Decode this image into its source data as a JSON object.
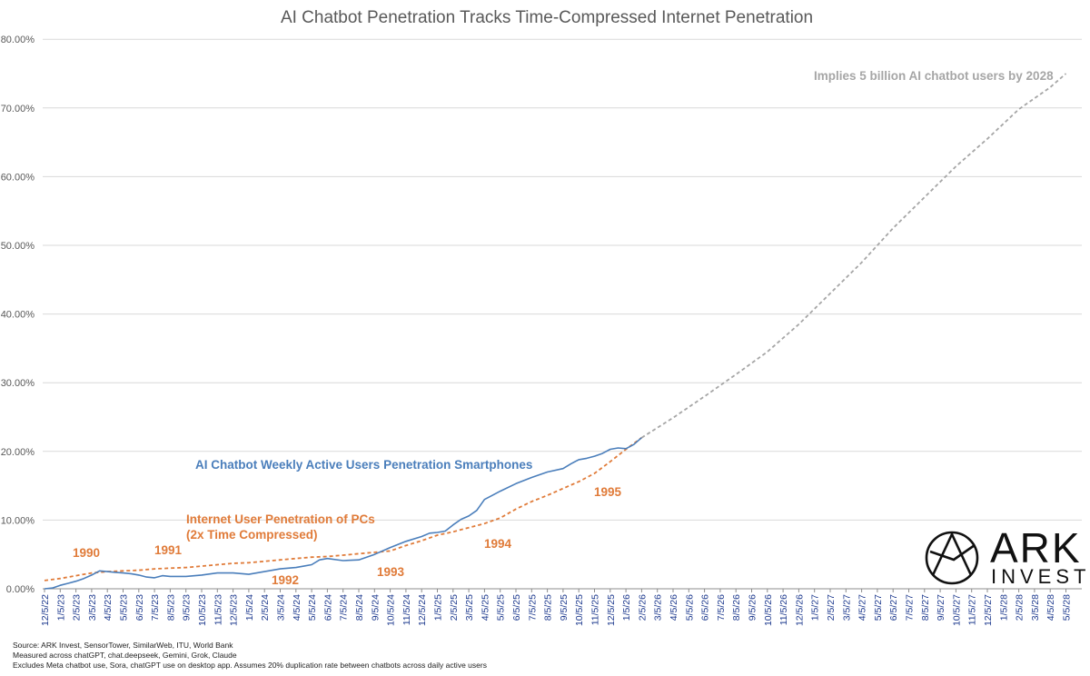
{
  "chart_data": {
    "type": "line",
    "title": "AI Chatbot Penetration Tracks Time-Compressed Internet Penetration",
    "y_ticks": [
      "0.00%",
      "10.00%",
      "20.00%",
      "30.00%",
      "40.00%",
      "50.00%",
      "60.00%",
      "70.00%",
      "80.00%"
    ],
    "ylim": [
      0,
      80
    ],
    "grid": true,
    "x_ticks": [
      "12/5/22",
      "1/5/23",
      "2/5/23",
      "3/5/23",
      "4/5/23",
      "5/5/23",
      "6/5/23",
      "7/5/23",
      "8/5/23",
      "9/5/23",
      "10/5/23",
      "11/5/23",
      "12/5/23",
      "1/5/24",
      "2/5/24",
      "3/5/24",
      "4/5/24",
      "5/5/24",
      "6/5/24",
      "7/5/24",
      "8/5/24",
      "9/5/24",
      "10/5/24",
      "11/5/24",
      "12/5/24",
      "1/5/25",
      "2/5/25",
      "3/5/25",
      "4/5/25",
      "5/5/25",
      "6/5/25",
      "7/5/25",
      "8/5/25",
      "9/5/25",
      "10/5/25",
      "11/5/25",
      "12/5/25",
      "1/5/26",
      "2/5/26",
      "3/5/26",
      "4/5/26",
      "5/5/26",
      "6/5/26",
      "7/5/26",
      "8/5/26",
      "9/5/26",
      "10/5/26",
      "11/5/26",
      "12/5/26",
      "1/5/27",
      "2/5/27",
      "3/5/27",
      "4/5/27",
      "5/5/27",
      "6/5/27",
      "7/5/27",
      "8/5/27",
      "9/5/27",
      "10/5/27",
      "11/5/27",
      "12/5/27",
      "1/5/28",
      "2/5/28",
      "3/5/28",
      "4/5/28",
      "5/5/28"
    ],
    "series": [
      {
        "name": "AI Chatbot Weekly Active Users Penetration Smartphones",
        "color": "#4a7ebb",
        "style": "solid",
        "x": [
          0,
          0.5,
          1,
          1.5,
          2,
          2.5,
          3,
          3.5,
          4,
          4.5,
          5,
          5.5,
          6,
          6.5,
          7,
          7.5,
          8,
          9,
          10,
          11,
          12,
          13,
          14,
          15,
          16,
          16.5,
          17,
          17.5,
          18,
          19,
          20,
          21,
          22,
          23,
          24,
          24.5,
          25,
          25.5,
          26,
          26.5,
          27,
          27.5,
          28,
          28.5,
          29,
          30,
          31,
          32,
          33,
          33.5,
          34,
          34.5,
          35,
          35.5,
          36,
          36.5,
          37,
          37.5,
          38
        ],
        "values": [
          0.0,
          0.1,
          0.5,
          0.8,
          1.1,
          1.5,
          2.0,
          2.6,
          2.5,
          2.4,
          2.3,
          2.2,
          2.0,
          1.7,
          1.6,
          1.9,
          1.8,
          1.8,
          2.0,
          2.3,
          2.3,
          2.1,
          2.5,
          2.9,
          3.1,
          3.3,
          3.5,
          4.2,
          4.4,
          4.1,
          4.2,
          5.0,
          6.0,
          6.9,
          7.6,
          8.1,
          8.2,
          8.4,
          9.3,
          10.1,
          10.6,
          11.4,
          13.0,
          13.6,
          14.2,
          15.3,
          16.2,
          17.0,
          17.5,
          18.2,
          18.8,
          19.0,
          19.3,
          19.7,
          20.3,
          20.5,
          20.4,
          21.0,
          22.0
        ]
      },
      {
        "name": "Internet User Penetration of PCs (2x Time Compressed)",
        "color": "#e07b39",
        "style": "dashed",
        "x": [
          0,
          1,
          2,
          3,
          4,
          5,
          6,
          7,
          8,
          9,
          10,
          11,
          12,
          13,
          14,
          15,
          16,
          17,
          18,
          19,
          20,
          21,
          22,
          23,
          24,
          25,
          26,
          27,
          28,
          29,
          30,
          31,
          32,
          33,
          34,
          35,
          36,
          37,
          38
        ],
        "values": [
          1.2,
          1.5,
          1.9,
          2.3,
          2.5,
          2.6,
          2.7,
          2.9,
          3.0,
          3.1,
          3.3,
          3.5,
          3.7,
          3.8,
          4.0,
          4.2,
          4.4,
          4.6,
          4.7,
          4.9,
          5.1,
          5.3,
          5.5,
          6.3,
          7.0,
          7.8,
          8.3,
          8.9,
          9.5,
          10.3,
          11.6,
          12.7,
          13.6,
          14.6,
          15.6,
          16.8,
          18.5,
          20.3,
          22.0
        ]
      },
      {
        "name": "Projection",
        "color": "#a6a6a6",
        "style": "dashed",
        "x": [
          38,
          40,
          42,
          44,
          46,
          48,
          50,
          52,
          54,
          56,
          58,
          60,
          62,
          64,
          65
        ],
        "values": [
          22.0,
          24.9,
          28.0,
          31.2,
          34.5,
          38.5,
          43.0,
          47.5,
          52.5,
          57.0,
          61.5,
          65.5,
          69.8,
          73.0,
          75.0
        ]
      }
    ]
  },
  "labels": {
    "chatbot_series": "AI Chatbot Weekly Active Users Penetration Smartphones",
    "internet_line1": "Internet User Penetration of PCs",
    "internet_line2": "(2x Time Compressed)",
    "projection_note": "Implies 5 billion AI chatbot users by 2028",
    "years": [
      "1990",
      "1991",
      "1992",
      "1993",
      "1994",
      "1995"
    ]
  },
  "logo": {
    "line1": "ARK",
    "line2": "INVEST"
  },
  "source": [
    "Source: ARK Invest, SensorTower, SimilarWeb, ITU, World Bank",
    "Measured across chatGPT, chat.deepseek, Gemini, Grok, Claude",
    "Excludes Meta chatbot use, Sora, chatGPT use on desktop app. Assumes 20% duplication rate between chatbots across daily active users"
  ],
  "colors": {
    "chatbot": "#4a7ebb",
    "internet": "#e07b39",
    "projection": "#a6a6a6"
  }
}
